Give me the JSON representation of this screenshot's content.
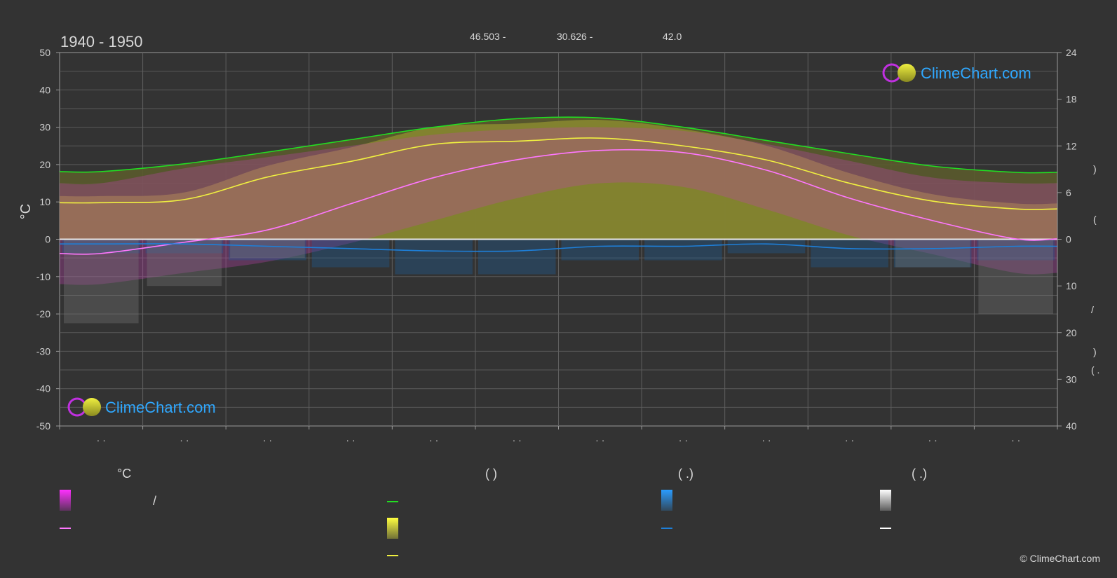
{
  "period": "1940 - 1950",
  "header": [
    "46.503 -",
    "30.626 -",
    "42.0"
  ],
  "brand": "ClimeChart.com",
  "copyright": "© ClimeChart.com",
  "left_unit": "°C",
  "right_unit_marks": [
    ")",
    "(",
    "/",
    ")",
    "(  ."
  ],
  "month_tick_labels": [
    "· ·",
    "· ·",
    "· ·",
    "· ·",
    "· ·",
    "· ·",
    "· ·",
    "· ·",
    "· ·",
    "· ·",
    "· ·",
    "· ·"
  ],
  "legend": {
    "col1_title": "°C",
    "col1_slash": "/",
    "col2_title": "(          )",
    "col3_title": "(   .)",
    "col4_title": "(   .)"
  },
  "colors": {
    "background": "#333333",
    "temp_band": "#e020e0",
    "mean_temp": "#ff77ff",
    "daylight": "#22dd22",
    "sunshine_band": "#c8c830",
    "sunshine_line": "#f0f040",
    "rain": "#1e7fd8",
    "snow": "#9a9a9a",
    "brand": "#2fa8ff"
  },
  "chart_data": {
    "type": "line",
    "x": [
      "1",
      "2",
      "3",
      "4",
      "5",
      "6",
      "7",
      "8",
      "9",
      "10",
      "11",
      "12"
    ],
    "y_left": {
      "unit": "°C",
      "range": [
        -50,
        50
      ],
      "ticks": [
        50,
        40,
        30,
        20,
        10,
        0,
        -10,
        -20,
        -30,
        -40,
        -50
      ]
    },
    "y_right_top": {
      "unit": "h",
      "range": [
        0,
        24
      ],
      "ticks": [
        24,
        18,
        12,
        6,
        0
      ]
    },
    "y_right_bottom": {
      "unit": "mm",
      "range": [
        0,
        40
      ],
      "ticks": [
        0,
        10,
        20,
        30,
        40
      ]
    },
    "grid": true,
    "series": [
      {
        "key": "daylight",
        "axis": "hours",
        "values": [
          8.7,
          9.7,
          11.2,
          12.8,
          14.4,
          15.5,
          15.6,
          14.4,
          12.7,
          11.0,
          9.4,
          8.6
        ]
      },
      {
        "key": "sunshine",
        "axis": "hours",
        "values": [
          4.7,
          5.1,
          8.0,
          10.0,
          12.2,
          12.6,
          13.0,
          12.0,
          10.2,
          7.2,
          4.9,
          3.9
        ]
      },
      {
        "key": "temp_mean",
        "axis": "celsius",
        "values": [
          -3.8,
          -0.8,
          2.5,
          9.5,
          16.5,
          21.3,
          23.8,
          23.2,
          18.5,
          11.0,
          5.0,
          0.1
        ]
      },
      {
        "key": "temp_max",
        "axis": "celsius",
        "values": [
          15,
          19,
          22,
          25,
          28,
          29.5,
          30,
          29,
          25.5,
          21,
          16.5,
          15
        ]
      },
      {
        "key": "temp_min",
        "axis": "celsius",
        "values": [
          -12,
          -9,
          -6,
          -1,
          5,
          11,
          15,
          14,
          8,
          1,
          -4,
          -9
        ]
      },
      {
        "key": "rain",
        "axis": "mm",
        "values": [
          1.0,
          1.0,
          1.5,
          2.0,
          2.5,
          2.5,
          1.5,
          1.5,
          1.0,
          2.0,
          2.0,
          1.5
        ]
      }
    ]
  }
}
